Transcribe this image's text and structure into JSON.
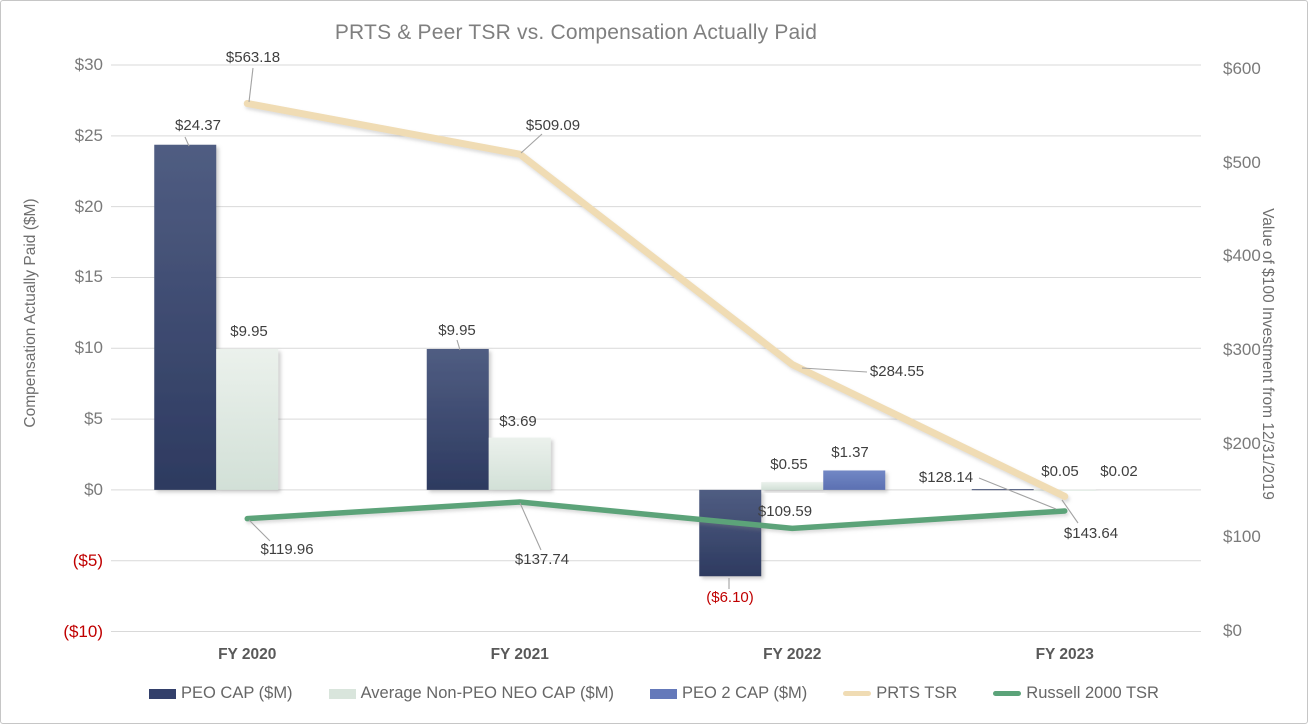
{
  "chart_data": {
    "type": "combo-bar-line",
    "title": "PRTS & Peer TSR vs. Compensation Actually Paid",
    "categories": [
      "FY 2020",
      "FY 2021",
      "FY 2022",
      "FY 2023"
    ],
    "left_axis": {
      "title": "Compensation Actually Paid ($M)",
      "min": -10,
      "max": 30,
      "step": 5,
      "tick_values": [
        30,
        25,
        20,
        15,
        10,
        5,
        0,
        -5,
        -10
      ],
      "tick_labels": [
        "$30",
        "$25",
        "$20",
        "$15",
        "$10",
        "$5",
        "$0",
        "($5)",
        "($10)"
      ],
      "negative_tick_color": "#c00000"
    },
    "right_axis": {
      "title": "Value of $100 Investment from 12/31/2019",
      "min": 0,
      "max": 600,
      "step": 100,
      "tick_values": [
        600,
        500,
        400,
        300,
        200,
        100,
        0
      ],
      "tick_labels": [
        "$600",
        "$500",
        "$400",
        "$300",
        "$200",
        "$100",
        "$0"
      ]
    },
    "grid": true,
    "gridline_color": "#d9d9d9",
    "legend_position": "bottom",
    "series": [
      {
        "name": "PEO CAP ($M)",
        "type": "bar",
        "axis": "left",
        "values": [
          24.37,
          9.95,
          -6.1,
          0.05
        ],
        "labels": [
          "$24.37",
          "$9.95",
          "($6.10)",
          "$0.05"
        ],
        "color_top": "#505d82",
        "color_bottom": "#2d3a60",
        "legend_color": "#33406b"
      },
      {
        "name": "Average Non-PEO NEO CAP ($M)",
        "type": "bar",
        "axis": "left",
        "values": [
          9.95,
          3.69,
          0.55,
          0.02
        ],
        "labels": [
          "$9.95",
          "$3.69",
          "$0.55",
          "$0.02"
        ],
        "color_top": "#ebf1ec",
        "color_bottom": "#d2e0d7",
        "legend_color": "#d9e5dc"
      },
      {
        "name": "PEO 2 CAP ($M)",
        "type": "bar",
        "axis": "left",
        "values": [
          null,
          null,
          1.37,
          null
        ],
        "labels": [
          null,
          null,
          "$1.37",
          null
        ],
        "color_top": "#7287c5",
        "color_bottom": "#5b70b2",
        "legend_color": "#6479ba"
      },
      {
        "name": "PRTS TSR",
        "type": "line",
        "axis": "right",
        "values": [
          563.18,
          509.09,
          284.55,
          143.64
        ],
        "labels": [
          "$563.18",
          "$509.09",
          "$284.55",
          "$143.64"
        ],
        "color": "#f0dcb4"
      },
      {
        "name": "Russell 2000 TSR",
        "type": "line",
        "axis": "right",
        "values": [
          119.96,
          137.74,
          109.59,
          128.14
        ],
        "labels": [
          "$119.96",
          "$137.74",
          "$109.59",
          "$128.14"
        ],
        "color": "#5ba379"
      }
    ],
    "label_color": "#3f3f3f",
    "negative_label_color": "#c00000",
    "leader_line_color": "#a3a3a3"
  }
}
